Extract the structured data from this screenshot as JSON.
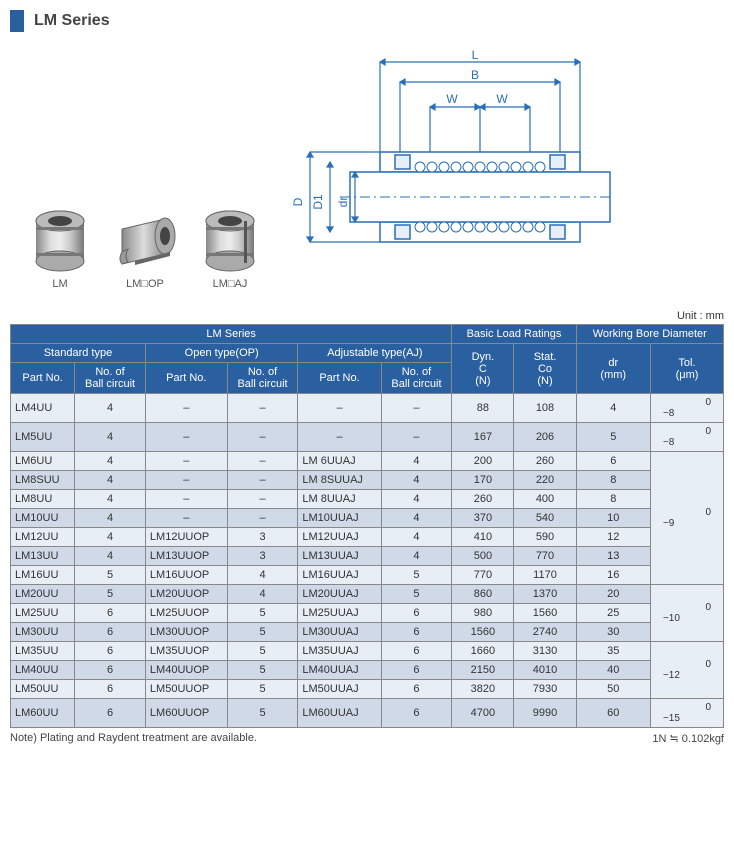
{
  "header": {
    "title": "LM Series"
  },
  "products": {
    "lm": "LM",
    "op": "LM□OP",
    "aj": "LM□AJ"
  },
  "diagram_labels": {
    "L": "L",
    "B": "B",
    "W1": "W",
    "W2": "W",
    "D": "D",
    "D1": "D1",
    "dr": "dr"
  },
  "unit_label": "Unit : mm",
  "table": {
    "header": {
      "lm_series": "LM Series",
      "basic_load": "Basic Load Ratings",
      "working_bore": "Working Bore Diameter",
      "standard": "Standard type",
      "open": "Open type(OP)",
      "adjustable": "Adjustable type(AJ)",
      "part_no": "Part No.",
      "ball_circuit": "No. of Ball circuit",
      "dyn": "Dyn. C (N)",
      "stat": "Stat. Co (N)",
      "dr": "dr (mm)",
      "tol": "Tol. (μm)"
    },
    "tolerances": {
      "t1": "0\n−8",
      "t2": "0\n−8",
      "t3": "0\n−9",
      "t4": "0\n−10",
      "t5": "0\n−12",
      "t6": "0\n−15"
    },
    "rows": [
      {
        "p1": "LM4UU",
        "b1": "4",
        "p2": "–",
        "b2": "–",
        "p3": "–",
        "b3": "–",
        "c": "88",
        "co": "108",
        "dr": "4"
      },
      {
        "p1": "LM5UU",
        "b1": "4",
        "p2": "–",
        "b2": "–",
        "p3": "–",
        "b3": "–",
        "c": "167",
        "co": "206",
        "dr": "5"
      },
      {
        "p1": "LM6UU",
        "b1": "4",
        "p2": "–",
        "b2": "–",
        "p3": "LM  6UUAJ",
        "b3": "4",
        "c": "200",
        "co": "260",
        "dr": "6"
      },
      {
        "p1": "LM8SUU",
        "b1": "4",
        "p2": "–",
        "b2": "–",
        "p3": "LM  8SUUAJ",
        "b3": "4",
        "c": "170",
        "co": "220",
        "dr": "8"
      },
      {
        "p1": "LM8UU",
        "b1": "4",
        "p2": "–",
        "b2": "–",
        "p3": "LM  8UUAJ",
        "b3": "4",
        "c": "260",
        "co": "400",
        "dr": "8"
      },
      {
        "p1": "LM10UU",
        "b1": "4",
        "p2": "–",
        "b2": "–",
        "p3": "LM10UUAJ",
        "b3": "4",
        "c": "370",
        "co": "540",
        "dr": "10"
      },
      {
        "p1": "LM12UU",
        "b1": "4",
        "p2": "LM12UUOP",
        "b2": "3",
        "p3": "LM12UUAJ",
        "b3": "4",
        "c": "410",
        "co": "590",
        "dr": "12"
      },
      {
        "p1": "LM13UU",
        "b1": "4",
        "p2": "LM13UUOP",
        "b2": "3",
        "p3": "LM13UUAJ",
        "b3": "4",
        "c": "500",
        "co": "770",
        "dr": "13"
      },
      {
        "p1": "LM16UU",
        "b1": "5",
        "p2": "LM16UUOP",
        "b2": "4",
        "p3": "LM16UUAJ",
        "b3": "5",
        "c": "770",
        "co": "1170",
        "dr": "16"
      },
      {
        "p1": "LM20UU",
        "b1": "5",
        "p2": "LM20UUOP",
        "b2": "4",
        "p3": "LM20UUAJ",
        "b3": "5",
        "c": "860",
        "co": "1370",
        "dr": "20"
      },
      {
        "p1": "LM25UU",
        "b1": "6",
        "p2": "LM25UUOP",
        "b2": "5",
        "p3": "LM25UUAJ",
        "b3": "6",
        "c": "980",
        "co": "1560",
        "dr": "25"
      },
      {
        "p1": "LM30UU",
        "b1": "6",
        "p2": "LM30UUOP",
        "b2": "5",
        "p3": "LM30UUAJ",
        "b3": "6",
        "c": "1560",
        "co": "2740",
        "dr": "30"
      },
      {
        "p1": "LM35UU",
        "b1": "6",
        "p2": "LM35UUOP",
        "b2": "5",
        "p3": "LM35UUAJ",
        "b3": "6",
        "c": "1660",
        "co": "3130",
        "dr": "35"
      },
      {
        "p1": "LM40UU",
        "b1": "6",
        "p2": "LM40UUOP",
        "b2": "5",
        "p3": "LM40UUAJ",
        "b3": "6",
        "c": "2150",
        "co": "4010",
        "dr": "40"
      },
      {
        "p1": "LM50UU",
        "b1": "6",
        "p2": "LM50UUOP",
        "b2": "5",
        "p3": "LM50UUAJ",
        "b3": "6",
        "c": "3820",
        "co": "7930",
        "dr": "50"
      },
      {
        "p1": "LM60UU",
        "b1": "6",
        "p2": "LM60UUOP",
        "b2": "5",
        "p3": "LM60UUAJ",
        "b3": "6",
        "c": "4700",
        "co": "9990",
        "dr": "60"
      }
    ]
  },
  "footnote": {
    "left": "Note) Plating and Raydent treatment are available.",
    "right": "1N ≒ 0.102kgf"
  },
  "colors": {
    "primary": "#2a5fa0",
    "row_light": "#e8eef5",
    "row_dark": "#cfd9e8",
    "diagram_line": "#2a6fb8"
  }
}
